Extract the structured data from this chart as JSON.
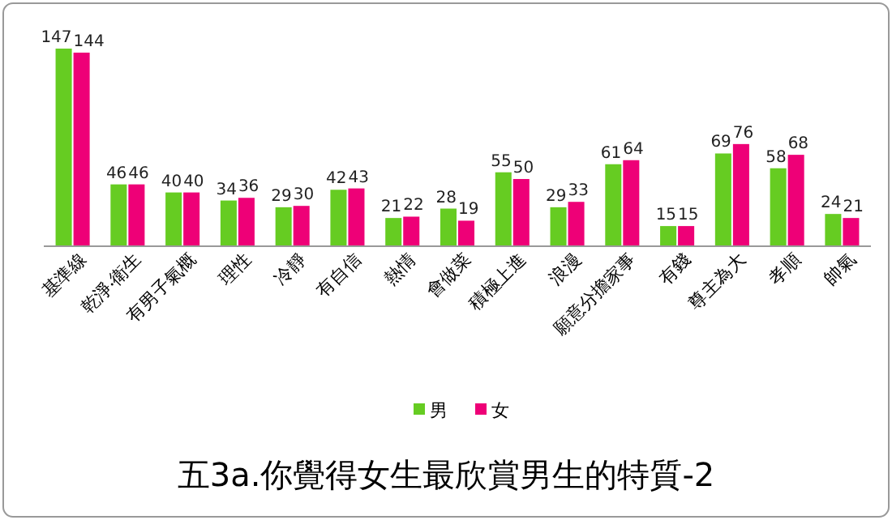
{
  "chart_data": {
    "type": "bar",
    "title": "五3a.你覺得女生最欣賞男生的特質-2",
    "categories": [
      "基準線",
      "乾淨‧衛生",
      "有男子氣概",
      "理性",
      "冷靜",
      "有自信",
      "熱情",
      "會做菜",
      "積極上進",
      "浪漫",
      "願意分擔家事",
      "有錢",
      "尊主為大",
      "孝順",
      "帥氣"
    ],
    "series": [
      {
        "name": "男",
        "color": "#66cc22",
        "values": [
          147,
          46,
          40,
          34,
          29,
          42,
          21,
          28,
          55,
          29,
          61,
          15,
          69,
          58,
          24
        ]
      },
      {
        "name": "女",
        "color": "#ee0077",
        "values": [
          144,
          46,
          40,
          36,
          30,
          43,
          22,
          19,
          50,
          33,
          64,
          15,
          76,
          68,
          21
        ]
      }
    ],
    "data_labels": true,
    "legend": "bottom"
  }
}
